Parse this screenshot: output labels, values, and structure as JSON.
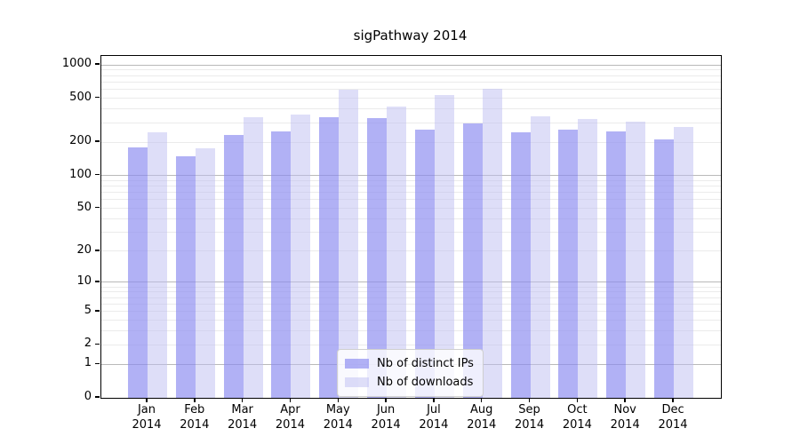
{
  "chart_data": {
    "type": "bar",
    "title": "sigPathway 2014",
    "categories": [
      "Jan",
      "Feb",
      "Mar",
      "Apr",
      "May",
      "Jun",
      "Jul",
      "Aug",
      "Sep",
      "Oct",
      "Nov",
      "Dec"
    ],
    "year": "2014",
    "series": [
      {
        "name": "Nb of distinct IPs",
        "color": "#8c8cf0",
        "opacity": 0.68,
        "apparent_color": "#b1b1f5",
        "values": [
          180,
          150,
          233,
          251,
          337,
          331,
          260,
          297,
          247,
          261,
          252,
          213
        ]
      },
      {
        "name": "Nb of downloads",
        "color": "#bebef2",
        "opacity": 0.5,
        "apparent_color": "#dcdcf8",
        "values": [
          245,
          178,
          340,
          358,
          598,
          420,
          535,
          611,
          344,
          326,
          308,
          276
        ]
      }
    ],
    "y_ticks": [
      0,
      1,
      2,
      5,
      10,
      20,
      50,
      100,
      200,
      500,
      1000
    ],
    "ylabel": "",
    "xlabel": "",
    "scale": "log1p",
    "ymax": 1205,
    "grid": true,
    "legend_position": "bottom-center",
    "legend_entries": [
      "Nb of distinct IPs",
      "Nb of downloads"
    ]
  }
}
